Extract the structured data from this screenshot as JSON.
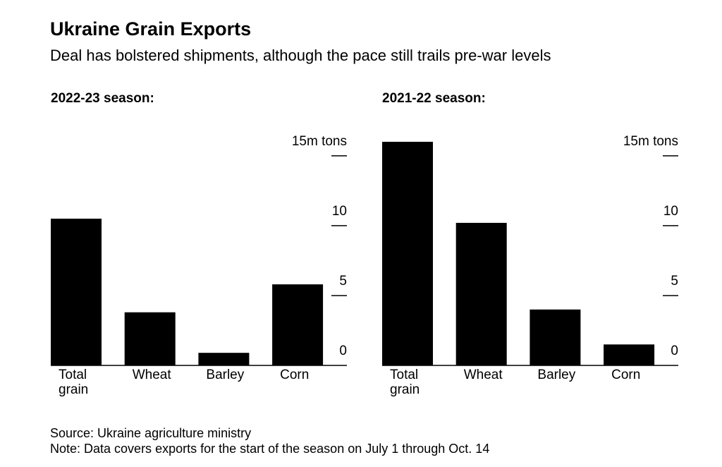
{
  "title": "Ukraine Grain Exports",
  "subtitle": "Deal has bolstered shipments, although the pace still trails pre-war levels",
  "source": "Source: Ukraine agriculture ministry",
  "note": "Note: Data covers exports for the start of the season on July 1 through Oct. 14",
  "chart_data": [
    {
      "type": "bar",
      "title": "2022-23 season:",
      "categories": [
        "Total grain",
        "Wheat",
        "Barley",
        "Corn"
      ],
      "values": [
        10.5,
        3.8,
        0.9,
        5.8
      ],
      "color": "#000000",
      "ylim": [
        0,
        16
      ],
      "yticks": [
        0,
        5,
        10,
        {
          "value": 15,
          "label": "15m tons"
        }
      ]
    },
    {
      "type": "bar",
      "title": "2021-22 season:",
      "categories": [
        "Total grain",
        "Wheat",
        "Barley",
        "Corn"
      ],
      "values": [
        16.0,
        10.2,
        4.0,
        1.5
      ],
      "color": "#000000",
      "ylim": [
        0,
        16
      ],
      "yticks": [
        0,
        5,
        10,
        {
          "value": 15,
          "label": "15m tons"
        }
      ]
    }
  ]
}
